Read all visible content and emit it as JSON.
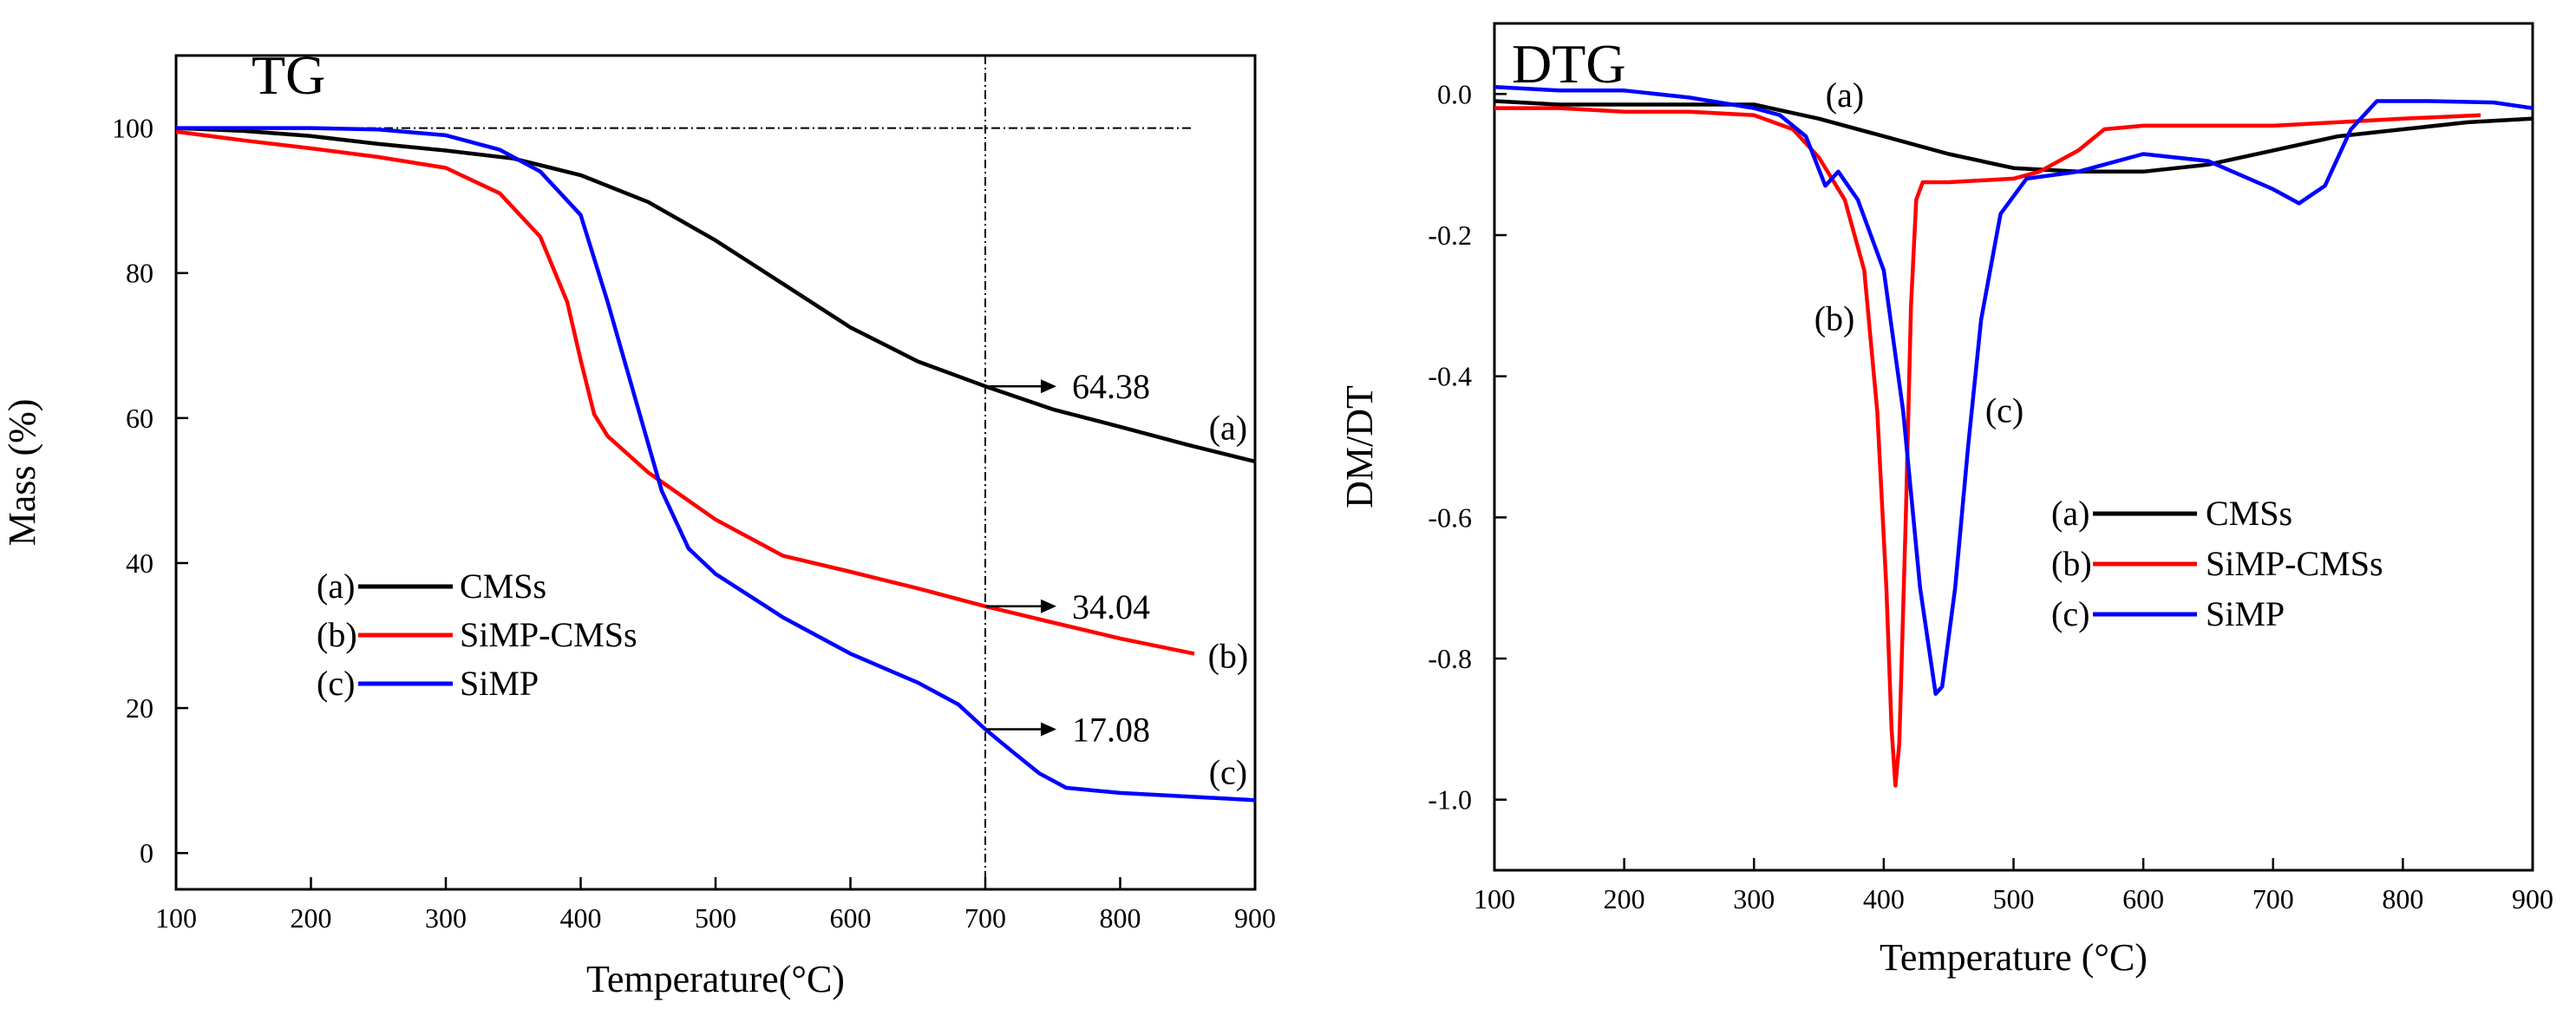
{
  "figure": {
    "panels": [
      "TG",
      "DTG"
    ]
  },
  "chart_data": [
    {
      "type": "line",
      "title": "TG",
      "xlabel": "Temperature(°C)",
      "ylabel": "Mass (%)",
      "xlim": [
        100,
        900
      ],
      "ylim": [
        -5,
        110
      ],
      "x_ticks": [
        100,
        200,
        300,
        400,
        500,
        600,
        700,
        800,
        900
      ],
      "y_ticks": [
        0,
        20,
        40,
        60,
        80,
        100
      ],
      "legend": [
        {
          "tag": "(a)",
          "name": "CMSs",
          "color": "#000000"
        },
        {
          "tag": "(b)",
          "name": "SiMP-CMSs",
          "color": "#ff0000"
        },
        {
          "tag": "(c)",
          "name": "SiMP",
          "color": "#0000ff"
        }
      ],
      "series": [
        {
          "name": "CMSs",
          "tag": "(a)",
          "color": "#000000",
          "points": [
            [
              100,
              100
            ],
            [
              150,
              99.6
            ],
            [
              200,
              98.9
            ],
            [
              250,
              97.8
            ],
            [
              300,
              96.9
            ],
            [
              350,
              95.8
            ],
            [
              400,
              93.5
            ],
            [
              450,
              89.8
            ],
            [
              500,
              84.5
            ],
            [
              550,
              78.5
            ],
            [
              600,
              72.5
            ],
            [
              650,
              67.8
            ],
            [
              700,
              64.38
            ],
            [
              750,
              61.2
            ],
            [
              800,
              58.8
            ],
            [
              850,
              56.3
            ],
            [
              900,
              54
            ]
          ]
        },
        {
          "name": "SiMP-CMSs",
          "tag": "(b)",
          "color": "#ff0000",
          "points": [
            [
              100,
              99.5
            ],
            [
              150,
              98.3
            ],
            [
              200,
              97.2
            ],
            [
              250,
              96
            ],
            [
              300,
              94.5
            ],
            [
              340,
              91
            ],
            [
              370,
              85
            ],
            [
              390,
              76
            ],
            [
              400,
              68
            ],
            [
              410,
              60.5
            ],
            [
              420,
              57.5
            ],
            [
              450,
              52.5
            ],
            [
              500,
              46
            ],
            [
              550,
              41
            ],
            [
              600,
              38.8
            ],
            [
              650,
              36.5
            ],
            [
              700,
              34.04
            ],
            [
              750,
              31.8
            ],
            [
              800,
              29.6
            ],
            [
              855,
              27.5
            ]
          ]
        },
        {
          "name": "SiMP",
          "tag": "(c)",
          "color": "#0000ff",
          "points": [
            [
              100,
              100
            ],
            [
              200,
              100
            ],
            [
              250,
              99.8
            ],
            [
              300,
              99
            ],
            [
              340,
              97
            ],
            [
              370,
              94
            ],
            [
              400,
              88
            ],
            [
              420,
              76
            ],
            [
              440,
              63
            ],
            [
              460,
              50
            ],
            [
              480,
              42
            ],
            [
              500,
              38.5
            ],
            [
              550,
              32.5
            ],
            [
              600,
              27.5
            ],
            [
              650,
              23.5
            ],
            [
              680,
              20.5
            ],
            [
              700,
              17.08
            ],
            [
              720,
              14
            ],
            [
              740,
              11
            ],
            [
              760,
              9
            ],
            [
              800,
              8.3
            ],
            [
              900,
              7.3
            ]
          ]
        }
      ],
      "reference_lines": {
        "horizontal_y": 100,
        "vertical_x": 700
      },
      "annotations": [
        {
          "text": "64.38",
          "x": 700,
          "y": 64.38
        },
        {
          "text": "34.04",
          "x": 700,
          "y": 34.04
        },
        {
          "text": "17.08",
          "x": 700,
          "y": 17.08
        }
      ],
      "curve_labels": [
        {
          "text": "(a)",
          "x": 880,
          "y": 58.5
        },
        {
          "text": "(b)",
          "x": 880,
          "y": 27
        },
        {
          "text": "(c)",
          "x": 880,
          "y": 11
        }
      ]
    },
    {
      "type": "line",
      "title": "DTG",
      "xlabel": "Temperature (°C)",
      "ylabel": "DM/DT",
      "xlim": [
        100,
        900
      ],
      "ylim": [
        -1.1,
        0.1
      ],
      "x_ticks": [
        100,
        200,
        300,
        400,
        500,
        600,
        700,
        800,
        900
      ],
      "y_ticks": [
        0.0,
        -0.2,
        -0.4,
        -0.6,
        -0.8,
        -1.0
      ],
      "y_tick_labels": [
        "0.0",
        "-0.2",
        "-0.4",
        "-0.6",
        "-0.8",
        "-1.0"
      ],
      "legend": [
        {
          "tag": "(a)",
          "name": "CMSs",
          "color": "#000000"
        },
        {
          "tag": "(b)",
          "name": "SiMP-CMSs",
          "color": "#ff0000"
        },
        {
          "tag": "(c)",
          "name": "SiMP",
          "color": "#0000ff"
        }
      ],
      "series": [
        {
          "name": "CMSs",
          "tag": "(a)",
          "color": "#000000",
          "points": [
            [
              100,
              -0.01
            ],
            [
              150,
              -0.015
            ],
            [
              200,
              -0.015
            ],
            [
              250,
              -0.015
            ],
            [
              280,
              -0.015
            ],
            [
              300,
              -0.015
            ],
            [
              350,
              -0.035
            ],
            [
              400,
              -0.06
            ],
            [
              450,
              -0.085
            ],
            [
              500,
              -0.105
            ],
            [
              550,
              -0.11
            ],
            [
              600,
              -0.11
            ],
            [
              650,
              -0.1
            ],
            [
              700,
              -0.08
            ],
            [
              750,
              -0.06
            ],
            [
              800,
              -0.05
            ],
            [
              850,
              -0.04
            ],
            [
              900,
              -0.035
            ]
          ]
        },
        {
          "name": "SiMP-CMSs",
          "tag": "(b)",
          "color": "#ff0000",
          "points": [
            [
              100,
              -0.02
            ],
            [
              150,
              -0.02
            ],
            [
              200,
              -0.025
            ],
            [
              250,
              -0.025
            ],
            [
              300,
              -0.03
            ],
            [
              330,
              -0.05
            ],
            [
              350,
              -0.09
            ],
            [
              370,
              -0.15
            ],
            [
              385,
              -0.25
            ],
            [
              395,
              -0.45
            ],
            [
              402,
              -0.7
            ],
            [
              406,
              -0.9
            ],
            [
              409,
              -0.98
            ],
            [
              412,
              -0.92
            ],
            [
              417,
              -0.6
            ],
            [
              421,
              -0.3
            ],
            [
              425,
              -0.15
            ],
            [
              430,
              -0.125
            ],
            [
              450,
              -0.125
            ],
            [
              500,
              -0.12
            ],
            [
              520,
              -0.11
            ],
            [
              550,
              -0.08
            ],
            [
              570,
              -0.05
            ],
            [
              600,
              -0.045
            ],
            [
              650,
              -0.045
            ],
            [
              700,
              -0.045
            ],
            [
              750,
              -0.04
            ],
            [
              800,
              -0.035
            ],
            [
              860,
              -0.03
            ]
          ]
        },
        {
          "name": "SiMP",
          "tag": "(c)",
          "color": "#0000ff",
          "points": [
            [
              100,
              0.01
            ],
            [
              150,
              0.005
            ],
            [
              200,
              0.005
            ],
            [
              250,
              -0.005
            ],
            [
              300,
              -0.02
            ],
            [
              320,
              -0.03
            ],
            [
              340,
              -0.06
            ],
            [
              355,
              -0.13
            ],
            [
              365,
              -0.11
            ],
            [
              380,
              -0.15
            ],
            [
              400,
              -0.25
            ],
            [
              415,
              -0.45
            ],
            [
              428,
              -0.7
            ],
            [
              440,
              -0.85
            ],
            [
              445,
              -0.84
            ],
            [
              455,
              -0.7
            ],
            [
              465,
              -0.5
            ],
            [
              475,
              -0.32
            ],
            [
              490,
              -0.17
            ],
            [
              510,
              -0.12
            ],
            [
              550,
              -0.11
            ],
            [
              600,
              -0.085
            ],
            [
              650,
              -0.095
            ],
            [
              700,
              -0.135
            ],
            [
              720,
              -0.155
            ],
            [
              740,
              -0.13
            ],
            [
              760,
              -0.05
            ],
            [
              780,
              -0.01
            ],
            [
              820,
              -0.01
            ],
            [
              870,
              -0.012
            ],
            [
              900,
              -0.02
            ]
          ]
        }
      ],
      "curve_labels": [
        {
          "text": "(a)",
          "x": 370,
          "y": -0.003
        },
        {
          "text": "(b)",
          "x": 362,
          "y": -0.32
        },
        {
          "text": "(c)",
          "x": 493,
          "y": -0.45
        }
      ]
    }
  ]
}
